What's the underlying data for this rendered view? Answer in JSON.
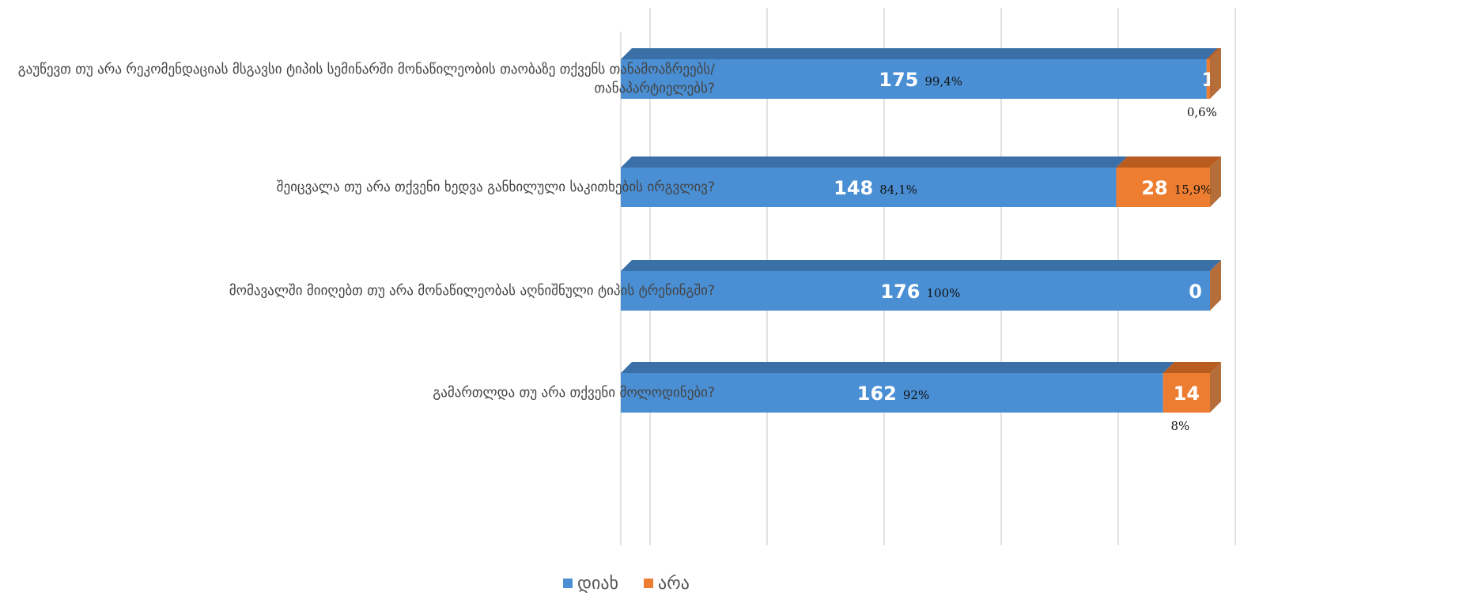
{
  "chart_data": {
    "type": "stacked_bar_horizontal",
    "categories": [
      "გაუწევთ თუ არა რეკომენდაციას მსგავსი ტიპის სემინარში მონაწილეობის თაობაზე თქვენს თანამოაზრეებს/ თანაპარტიელებს?",
      "შეიცვალა თუ არა თქვენი ხედვა განხილული საკითხების ირგვლივ?",
      "მომავალში მიიღებთ თუ არა მონაწილეობას აღნიშნული ტიპის ტრენინგში?",
      "გამართლდა თუ არა თქვენი მოლოდინები?"
    ],
    "series": [
      {
        "name": "დიახ",
        "color": "#4a8fd4",
        "top_color": "#3a6fa8",
        "values": [
          175,
          148,
          176,
          162
        ],
        "percent_labels": [
          "99,4%",
          "84,1%",
          "100%",
          "92%"
        ]
      },
      {
        "name": "არა",
        "color": "#ed7d31",
        "top_color": "#b85c20",
        "values": [
          1,
          28,
          0,
          14
        ],
        "percent_labels": [
          "0,6%",
          "15,9%",
          null,
          "8%"
        ]
      }
    ],
    "xlim": [
      0,
      176
    ],
    "legend": "bottom"
  }
}
